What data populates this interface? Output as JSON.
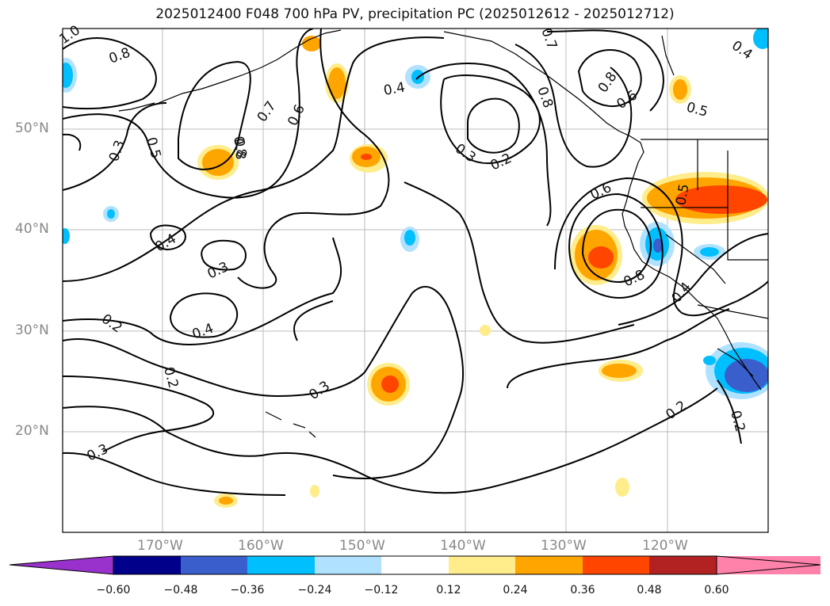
{
  "title": "2025012400 F048 700 hPa PV, precipitation PC (2025012612 - 2025012712)",
  "lat_labels": [
    "50°N",
    "40°N",
    "30°N",
    "20°N"
  ],
  "lon_labels": [
    "170°W",
    "160°W",
    "150°W",
    "140°W",
    "130°W",
    "120°W"
  ],
  "contour_labels": [
    "1.0",
    "0.8",
    "0.8",
    "0.7",
    "0.6",
    "0.4",
    "0.3",
    "0.2",
    "0.7",
    "0.8",
    "0.8",
    "0.6",
    "0.4",
    "0.5",
    "0.3",
    "0.5",
    "0.8",
    "0.4",
    "0.3",
    "0.4",
    "0.2",
    "0.2",
    "0.3",
    "0.3",
    "0.6",
    "0.8",
    "0.5",
    "0.4",
    "0.2",
    "0.2"
  ],
  "colorbar": {
    "ticks": [
      "−0.60",
      "−0.48",
      "−0.36",
      "−0.24",
      "−0.12",
      "0.12",
      "0.24",
      "0.36",
      "0.48",
      "0.60"
    ],
    "colors": [
      "#9932cc",
      "#00008b",
      "#3a5fcd",
      "#00bfff",
      "#b0e2ff",
      "#ffffff",
      "#ffec8b",
      "#ffa500",
      "#ff4500",
      "#b22222",
      "#ff82ab"
    ]
  }
}
